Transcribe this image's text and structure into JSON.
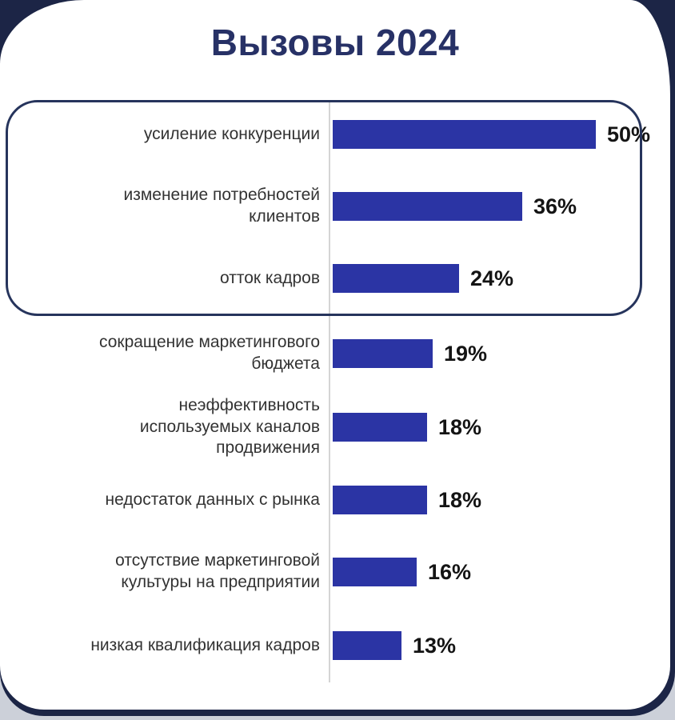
{
  "title": "Вызовы 2024",
  "colors": {
    "bar": "#2b34a4",
    "outer_navy": "#1c2546",
    "title_navy": "#273166",
    "highlight_border": "#26345c",
    "label_text": "#333333",
    "value_text": "#141414",
    "axis_line": "#d4d4d4",
    "page_background": "#ccd0d9",
    "card_background": "#ffffff"
  },
  "chart_data": {
    "type": "bar",
    "orientation": "horizontal",
    "title": "Вызовы 2024",
    "unit": "%",
    "xlim": [
      0,
      50
    ],
    "grid": false,
    "legend": false,
    "annotation": "top three bars are enclosed in a rounded highlight box",
    "categories": [
      "усиление конкуренции",
      "изменение потребностей клиентов",
      "отток кадров",
      "сокращение маркетингового бюджета",
      "неэффективность используемых каналов продвижения",
      "недостаток данных с рынка",
      "отсутствие маркетинговой культуры на предприятии",
      "низкая квалификация кадров"
    ],
    "values": [
      50,
      36,
      24,
      19,
      18,
      18,
      16,
      13
    ],
    "rows": [
      {
        "label": "усиление конкуренции",
        "value": 50,
        "value_label": "50%",
        "highlighted": true
      },
      {
        "label": "изменение потребностей\nклиентов",
        "value": 36,
        "value_label": "36%",
        "highlighted": true
      },
      {
        "label": "отток кадров",
        "value": 24,
        "value_label": "24%",
        "highlighted": true
      },
      {
        "label": "сокращение маркетингового\nбюджета",
        "value": 19,
        "value_label": "19%",
        "highlighted": false
      },
      {
        "label": "неэффективность\nиспользуемых каналов\nпродвижения",
        "value": 18,
        "value_label": "18%",
        "highlighted": false
      },
      {
        "label": "недостаток данных с рынка",
        "value": 18,
        "value_label": "18%",
        "highlighted": false
      },
      {
        "label": "отсутствие маркетинговой\nкультуры на предприятии",
        "value": 16,
        "value_label": "16%",
        "highlighted": false
      },
      {
        "label": "низкая квалификация кадров",
        "value": 13,
        "value_label": "13%",
        "highlighted": false
      }
    ]
  }
}
